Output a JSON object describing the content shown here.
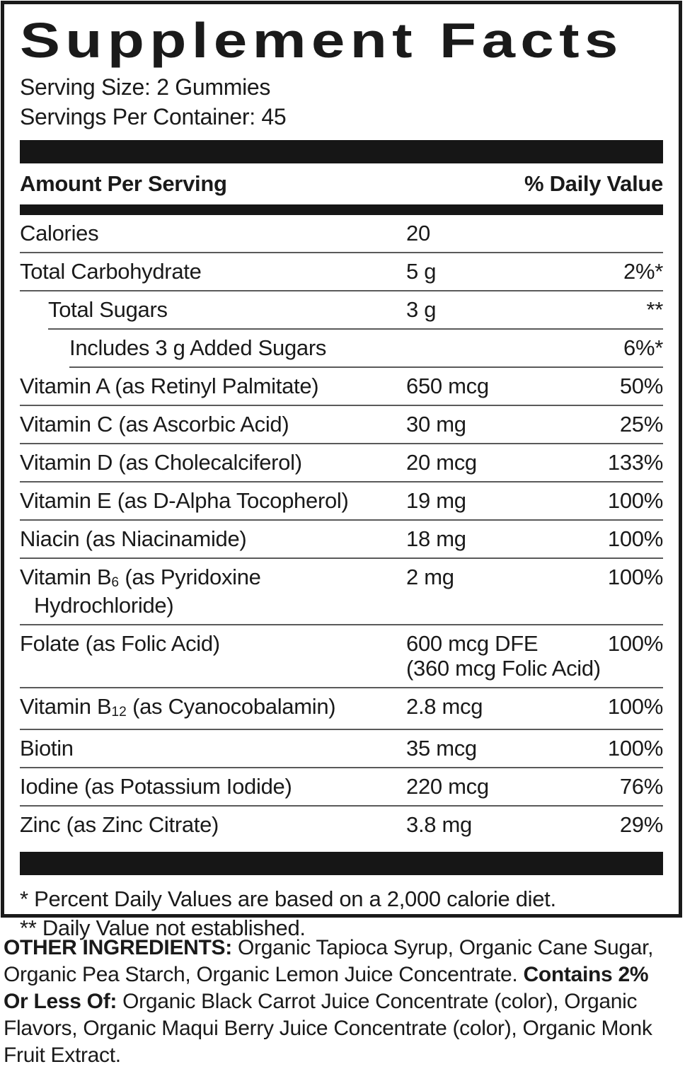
{
  "supplement_facts": {
    "title": "Supplement Facts",
    "serving_size": "Serving Size: 2 Gummies",
    "servings_per_container": "Servings Per Container: 45",
    "header": {
      "amount_col": "Amount Per Serving",
      "dv_col": "% Daily Value"
    },
    "rows": [
      {
        "name": "Calories",
        "amount": "20",
        "dv": "",
        "indent": 0
      },
      {
        "name": "Total Carbohydrate",
        "amount": "5 g",
        "dv": "2%*",
        "indent": 0
      },
      {
        "name": "Total Sugars",
        "amount": "3 g",
        "dv": "**",
        "indent": 1
      },
      {
        "name": "Includes 3 g Added Sugars",
        "amount": "",
        "dv": "6%*",
        "indent": 2
      },
      {
        "name": "Vitamin A (as Retinyl Palmitate)",
        "amount": "650 mcg",
        "dv": "50%",
        "indent": 0
      },
      {
        "name": "Vitamin C (as Ascorbic Acid)",
        "amount": "30 mg",
        "dv": "25%",
        "indent": 0
      },
      {
        "name": "Vitamin D (as Cholecalciferol)",
        "amount": "20 mcg",
        "dv": "133%",
        "indent": 0
      },
      {
        "name": "Vitamin E (as D-Alpha Tocopherol)",
        "amount": "19 mg",
        "dv": "100%",
        "indent": 0
      },
      {
        "name": "Niacin (as Niacinamide)",
        "amount": "18 mg",
        "dv": "100%",
        "indent": 0
      },
      {
        "name": "Vitamin B",
        "name_sub": "6",
        "name_rest": " (as Pyridoxine",
        "name_line2": "Hydrochloride)",
        "amount": "2 mg",
        "dv": "100%",
        "indent": 0
      },
      {
        "name": "Folate (as Folic Acid)",
        "amount": "600 mcg DFE",
        "amount_line2": "(360 mcg Folic Acid)",
        "dv": "100%",
        "indent": 0
      },
      {
        "name": "Vitamin B",
        "name_sub": "12",
        "name_rest": " (as Cyanocobalamin)",
        "amount": "2.8 mcg",
        "dv": "100%",
        "indent": 0
      },
      {
        "name": "Biotin",
        "amount": "35 mcg",
        "dv": "100%",
        "indent": 0
      },
      {
        "name": "Iodine (as Potassium Iodide)",
        "amount": "220 mcg",
        "dv": "76%",
        "indent": 0
      },
      {
        "name": "Zinc (as Zinc Citrate)",
        "amount": "3.8 mg",
        "dv": "29%",
        "indent": 0
      }
    ],
    "footnotes": [
      "* Percent Daily Values are based on a 2,000 calorie diet.",
      "** Daily Value not established."
    ]
  },
  "other_ingredients": {
    "label_bold": "OTHER INGREDIENTS:",
    "text_1": " Organic Tapioca Syrup, Organic Cane Sugar, Organic Pea Starch, Organic Lemon Juice Concentrate. ",
    "contains_bold": "Contains 2% Or Less Of:",
    "text_2": " Organic Black Carrot Juice Concentrate (color), Organic Flavors, Organic Maqui Berry Juice Concentrate (color), Organic Monk Fruit Extract."
  },
  "colors": {
    "ink": "#1a1a1a",
    "bar": "#161616",
    "hairline": "#5a5a5a",
    "background": "#ffffff"
  }
}
